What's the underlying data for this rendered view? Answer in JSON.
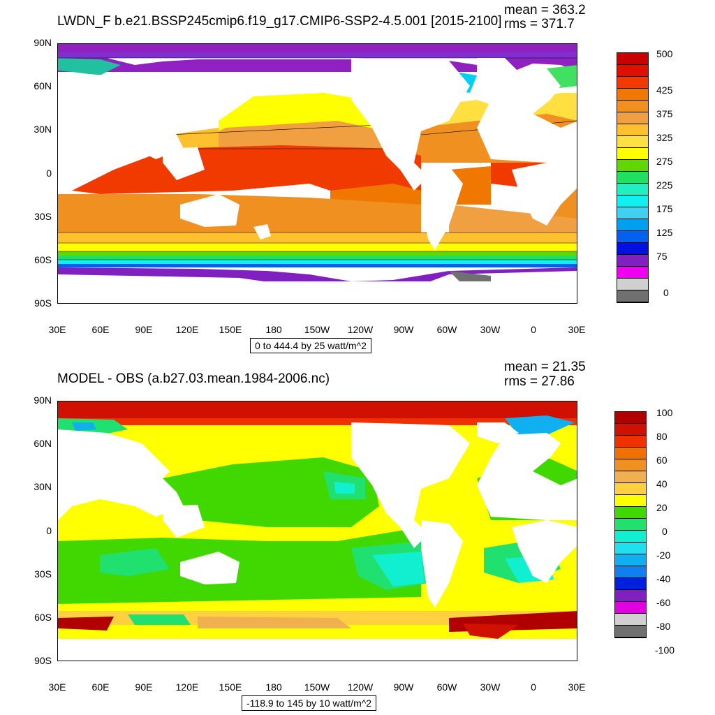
{
  "panels": [
    {
      "title": "LWDN_F b.e21.BSSP245cmip6.f19_g17.CMIP6-SSP2-4.5.001 [2015-2100]",
      "mean": "mean = 363.2",
      "rms": "rms = 371.7",
      "range_label": "0 to 444.4 by 25 watt/m^2",
      "lat_labels": [
        "90N",
        "60N",
        "30N",
        "0",
        "30S",
        "60S",
        "90S"
      ],
      "lon_labels": [
        "30E",
        "60E",
        "90E",
        "120E",
        "150E",
        "180",
        "150W",
        "120W",
        "90W",
        "60W",
        "30W",
        "0",
        "30E"
      ],
      "colorbar_colors": [
        "#c80000",
        "#e01000",
        "#f03a00",
        "#f07800",
        "#f09020",
        "#f0a040",
        "#ffc030",
        "#ffe040",
        "#ffff00",
        "#60d800",
        "#20e060",
        "#20f0c0",
        "#10f0f0",
        "#40d0f0",
        "#00a0f0",
        "#0060f0",
        "#0010e0",
        "#8020c0",
        "#f000f0",
        "#d0d0d0",
        "#707070"
      ],
      "colorbar_labels": [
        "500",
        "425",
        "375",
        "325",
        "275",
        "225",
        "175",
        "125",
        "75",
        "0"
      ]
    },
    {
      "title": "MODEL - OBS (a.b27.03.mean.1984-2006.nc)",
      "mean": "mean = 21.35",
      "rms": "rms = 27.86",
      "range_label": "-118.9 to 145 by 10 watt/m^2",
      "lat_labels": [
        "90N",
        "60N",
        "30N",
        "0",
        "30S",
        "60S",
        "90S"
      ],
      "lon_labels": [
        "30E",
        "60E",
        "90E",
        "120E",
        "150E",
        "180",
        "150W",
        "120W",
        "90W",
        "60W",
        "30W",
        "0",
        "30E"
      ],
      "colorbar_colors": [
        "#b00000",
        "#d01000",
        "#f03000",
        "#f07000",
        "#f09020",
        "#f0b050",
        "#ffd040",
        "#ffff00",
        "#40d800",
        "#20e070",
        "#10f0d0",
        "#20e0f0",
        "#10b0f0",
        "#1080f0",
        "#0020e0",
        "#8020c0",
        "#e000e0",
        "#d0d0d0",
        "#707070"
      ],
      "colorbar_labels": [
        "100",
        "80",
        "60",
        "40",
        "20",
        "0",
        "-20",
        "-40",
        "-60",
        "-80",
        "-100"
      ]
    }
  ]
}
